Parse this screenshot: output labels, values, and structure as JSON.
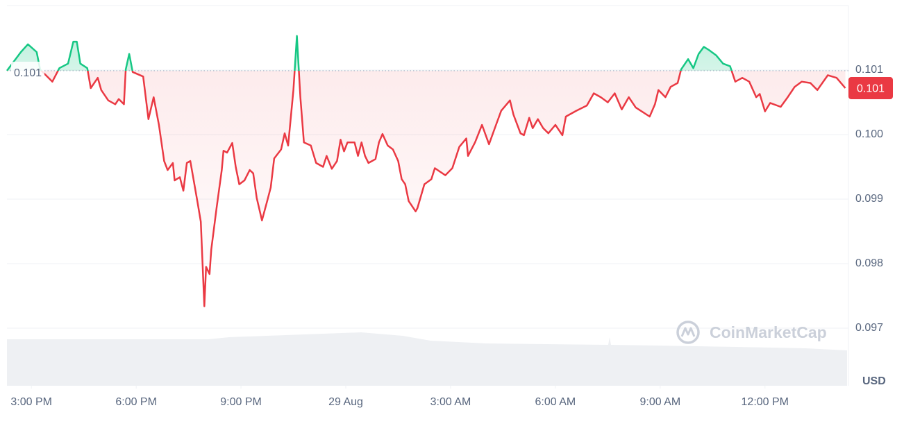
{
  "chart_data": {
    "type": "line",
    "x": [
      -0.7,
      -0.3,
      -0.1,
      0.15,
      0.25,
      0.6,
      0.8,
      1.05,
      1.2,
      1.3,
      1.4,
      1.6,
      1.7,
      1.9,
      2.0,
      2.2,
      2.4,
      2.5,
      2.65,
      2.7,
      2.8,
      2.9,
      3.2,
      3.35,
      3.5,
      3.65,
      3.8,
      3.9,
      4.05,
      4.1,
      4.25,
      4.35,
      4.45,
      4.55,
      4.75,
      4.85,
      4.95,
      5.0,
      5.1,
      5.15,
      5.3,
      5.45,
      5.5,
      5.6,
      5.75,
      5.85,
      5.95,
      6.1,
      6.25,
      6.35,
      6.45,
      6.6,
      6.75,
      6.85,
      6.95,
      7.15,
      7.25,
      7.35,
      7.5,
      7.6,
      7.7,
      7.8,
      8.0,
      8.15,
      8.35,
      8.45,
      8.6,
      8.75,
      8.85,
      8.95,
      9.05,
      9.25,
      9.35,
      9.45,
      9.55,
      9.65,
      9.85,
      9.95,
      10.05,
      10.2,
      10.35,
      10.5,
      10.6,
      10.7,
      10.8,
      11.0,
      11.05,
      11.25,
      11.45,
      11.55,
      11.85,
      12.05,
      12.25,
      12.45,
      12.5,
      12.7,
      12.9,
      13.1,
      13.3,
      13.45,
      13.7,
      13.8,
      14.0,
      14.1,
      14.25,
      14.35,
      14.5,
      14.65,
      14.8,
      15.0,
      15.2,
      15.3,
      15.6,
      15.9,
      16.1,
      16.3,
      16.5,
      16.7,
      16.9,
      17.1,
      17.3,
      17.7,
      17.85,
      17.95,
      18.15,
      18.3,
      18.5,
      18.6,
      18.8,
      18.95,
      19.1,
      19.25,
      19.4,
      19.6,
      19.8,
      20.0,
      20.15,
      20.35,
      20.55,
      20.75,
      20.85,
      21.0,
      21.15,
      21.45,
      21.65,
      21.85,
      22.05,
      22.3,
      22.5,
      22.8,
      23.05,
      23.3
    ],
    "values": [
      0.10099,
      0.10128,
      0.1014,
      0.10128,
      0.10101,
      0.10082,
      0.10103,
      0.1011,
      0.10144,
      0.10144,
      0.1011,
      0.10103,
      0.10072,
      0.10088,
      0.10069,
      0.10053,
      0.10047,
      0.10055,
      0.10047,
      0.10101,
      0.10125,
      0.10097,
      0.1009,
      0.10024,
      0.10058,
      0.10015,
      0.09959,
      0.09945,
      0.09956,
      0.09929,
      0.09934,
      0.09913,
      0.09956,
      0.09959,
      0.09897,
      0.09865,
      0.09734,
      0.09795,
      0.09784,
      0.09822,
      0.09886,
      0.09945,
      0.09975,
      0.09972,
      0.09987,
      0.0995,
      0.09923,
      0.09929,
      0.09945,
      0.0994,
      0.09902,
      0.09867,
      0.09897,
      0.09918,
      0.09963,
      0.09977,
      0.10002,
      0.09983,
      0.10069,
      0.10153,
      0.10058,
      0.09988,
      0.09983,
      0.09956,
      0.0995,
      0.09967,
      0.09947,
      0.09959,
      0.09992,
      0.09974,
      0.09988,
      0.09988,
      0.09967,
      0.09988,
      0.09967,
      0.09956,
      0.09962,
      0.09988,
      0.10001,
      0.09983,
      0.09977,
      0.09959,
      0.09931,
      0.09923,
      0.09897,
      0.09881,
      0.09886,
      0.09923,
      0.09931,
      0.09948,
      0.09937,
      0.09948,
      0.09981,
      0.09994,
      0.09967,
      0.09988,
      0.10015,
      0.09985,
      0.10015,
      0.10037,
      0.10053,
      0.10031,
      0.10002,
      0.09999,
      0.10026,
      0.1001,
      0.10024,
      0.1001,
      0.10002,
      0.10015,
      0.09999,
      0.10028,
      0.10037,
      0.10045,
      0.10064,
      0.10058,
      0.1005,
      0.10064,
      0.10039,
      0.10058,
      0.10042,
      0.10028,
      0.10047,
      0.10069,
      0.10058,
      0.10074,
      0.1008,
      0.10101,
      0.10117,
      0.10103,
      0.10125,
      0.10136,
      0.10131,
      0.10123,
      0.1011,
      0.10106,
      0.10082,
      0.10088,
      0.10082,
      0.10058,
      0.10063,
      0.10036,
      0.10049,
      0.10043,
      0.10058,
      0.10074,
      0.10082,
      0.1008,
      0.10069,
      0.10092,
      0.10088,
      0.10072
    ],
    "color_up": "#16c784",
    "color_down": "#ea3943",
    "baseline": {
      "value": 0.10099,
      "label": "0.101"
    },
    "last_price": {
      "value": 0.10072,
      "label": "0.101"
    },
    "xlim": [
      -0.7,
      23.35
    ],
    "xticks": [
      {
        "value": 0,
        "label": "3:00 PM"
      },
      {
        "value": 3,
        "label": "6:00 PM"
      },
      {
        "value": 6,
        "label": "9:00 PM"
      },
      {
        "value": 9,
        "label": "29 Aug"
      },
      {
        "value": 12,
        "label": "3:00 AM"
      },
      {
        "value": 15,
        "label": "6:00 AM"
      },
      {
        "value": 18,
        "label": "9:00 AM"
      },
      {
        "value": 21,
        "label": "12:00 PM"
      }
    ],
    "ylim": [
      0.0962,
      0.102
    ],
    "yticks": [
      0.097,
      0.098,
      0.099,
      {
        "value": 0.1,
        "label": "0.100"
      },
      0.101
    ],
    "grid": true,
    "currency": "USD",
    "watermark": "CoinMarketCap"
  }
}
